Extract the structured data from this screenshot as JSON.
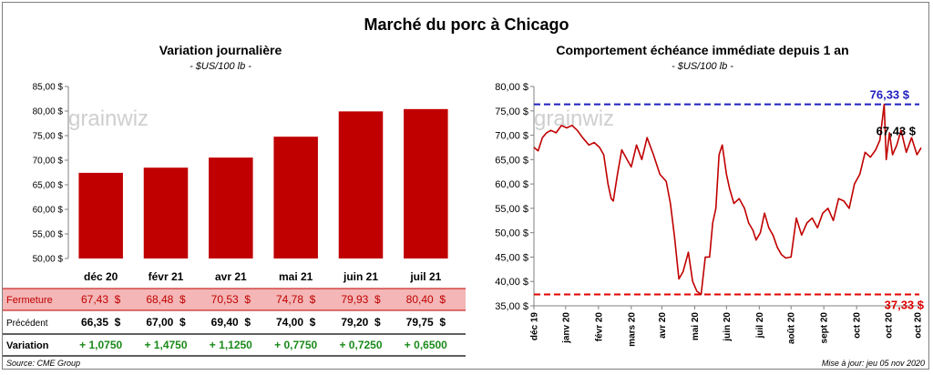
{
  "main_title": "Marché du porc à Chicago",
  "source": "Source: CME Group",
  "updated": "Mise à jour: jeu 05 nov 2020",
  "watermark": "grainwiz",
  "colors": {
    "bar": "#c00000",
    "line": "#c00000",
    "max_line": "#1f1fbf",
    "min_line": "#e00000",
    "positive": "#1a8a1a",
    "fermeture_bg": "#f4b6b6"
  },
  "chart_data": [
    {
      "type": "bar",
      "title": "Variation journalière",
      "subtitle": "- $US/100 lb -",
      "categories": [
        "déc 20",
        "févr 21",
        "avr 21",
        "mai 21",
        "juin 21",
        "juil 21"
      ],
      "values": [
        67.43,
        68.48,
        70.53,
        74.78,
        79.93,
        80.4
      ],
      "ylim": [
        50,
        85
      ],
      "yticks": [
        50,
        55,
        60,
        65,
        70,
        75,
        80,
        85
      ],
      "ytick_labels": [
        "50,00 $",
        "55,00 $",
        "60,00 $",
        "65,00 $",
        "70,00 $",
        "75,00 $",
        "80,00 $",
        "85,00 $"
      ],
      "grid": false,
      "table": {
        "rows": [
          {
            "label": "Fermeture",
            "values": [
              "67,43  $",
              "68,48  $",
              "70,53  $",
              "74,78  $",
              "79,93  $",
              "80,40  $"
            ]
          },
          {
            "label": "Précédent",
            "values": [
              "66,35  $",
              "67,00  $",
              "69,40  $",
              "74,00  $",
              "79,20  $",
              "79,75  $"
            ]
          },
          {
            "label": "Variation",
            "values": [
              "+ 1,0750",
              "+ 1,4750",
              "+ 1,1250",
              "+ 0,7750",
              "+ 0,7250",
              "+ 0,6500"
            ]
          }
        ]
      }
    },
    {
      "type": "line",
      "title": "Comportement  échéance immédiate depuis 1 an",
      "subtitle": "- $US/100 lb -",
      "ylim": [
        35,
        80
      ],
      "yticks": [
        35,
        40,
        45,
        50,
        55,
        60,
        65,
        70,
        75,
        80
      ],
      "ytick_labels": [
        "35,00 $",
        "40,00 $",
        "45,00 $",
        "50,00 $",
        "55,00 $",
        "60,00 $",
        "65,00 $",
        "70,00 $",
        "75,00 $",
        "80,00 $"
      ],
      "xtick_labels": [
        "déc 19",
        "janv 20",
        "févr 20",
        "mars 20",
        "avr 20",
        "mai 20",
        "juin 20",
        "juil 20",
        "août 20",
        "sept 20",
        "oct 20",
        "oct 20"
      ],
      "xticks": [
        "2019-11-05",
        "2019-12-05",
        "2020-01-05",
        "2020-02-05",
        "2020-03-05",
        "2020-04-05",
        "2020-05-05",
        "2020-06-05",
        "2020-07-05",
        "2020-08-05",
        "2020-09-05",
        "2020-10-05"
      ],
      "xlim": [
        "2019-11-05",
        "2020-11-05"
      ],
      "grid": false,
      "max_value": 76.33,
      "max_label": "76,33 $",
      "min_value": 37.33,
      "min_label": "37,33 $",
      "last_label": "67,43 $",
      "series": [
        {
          "x": [
            "2019-11-05",
            "2019-11-09",
            "2019-11-13",
            "2019-11-17",
            "2019-11-21",
            "2019-11-26",
            "2019-12-01",
            "2019-12-06",
            "2019-12-11",
            "2019-12-16",
            "2019-12-21",
            "2019-12-27",
            "2020-01-01",
            "2020-01-06",
            "2020-01-10",
            "2020-01-14",
            "2020-01-17",
            "2020-01-19",
            "2020-01-23",
            "2020-01-27",
            "2020-02-01",
            "2020-02-05",
            "2020-02-10",
            "2020-02-15",
            "2020-02-20",
            "2020-02-26",
            "2020-03-03",
            "2020-03-09",
            "2020-03-13",
            "2020-03-17",
            "2020-03-21",
            "2020-03-25",
            "2020-03-30",
            "2020-04-03",
            "2020-04-07",
            "2020-04-11",
            "2020-04-15",
            "2020-04-19",
            "2020-04-22",
            "2020-04-25",
            "2020-04-28",
            "2020-05-01",
            "2020-05-05",
            "2020-05-08",
            "2020-05-12",
            "2020-05-17",
            "2020-05-22",
            "2020-05-26",
            "2020-05-30",
            "2020-06-02",
            "2020-06-06",
            "2020-06-10",
            "2020-06-14",
            "2020-06-18",
            "2020-06-22",
            "2020-06-26",
            "2020-06-30",
            "2020-07-05",
            "2020-07-10",
            "2020-07-15",
            "2020-07-20",
            "2020-07-25",
            "2020-07-30",
            "2020-08-04",
            "2020-08-09",
            "2020-08-14",
            "2020-08-19",
            "2020-08-24",
            "2020-08-29",
            "2020-09-03",
            "2020-09-08",
            "2020-09-13",
            "2020-09-18",
            "2020-09-23",
            "2020-09-27",
            "2020-10-01",
            "2020-10-03",
            "2020-10-06",
            "2020-10-09",
            "2020-10-13",
            "2020-10-17",
            "2020-10-22",
            "2020-10-27",
            "2020-11-01",
            "2020-11-05"
          ],
          "y": [
            67.5,
            66.8,
            69.5,
            70.5,
            71.0,
            70.5,
            72.0,
            71.5,
            72.0,
            71.0,
            69.5,
            68.0,
            68.5,
            67.5,
            66.0,
            60.0,
            57.0,
            56.5,
            62.0,
            67.0,
            65.0,
            63.5,
            68.0,
            65.0,
            69.5,
            66.0,
            62.0,
            60.5,
            56.0,
            49.0,
            40.5,
            42.0,
            46.0,
            40.0,
            38.0,
            37.33,
            45.0,
            45.0,
            52.0,
            55.0,
            66.0,
            68.0,
            62.0,
            59.0,
            56.0,
            57.0,
            55.0,
            52.0,
            50.5,
            48.5,
            50.0,
            54.0,
            51.0,
            49.5,
            47.0,
            45.5,
            44.8,
            45.0,
            53.0,
            49.5,
            52.0,
            53.0,
            51.0,
            54.0,
            55.0,
            52.5,
            57.0,
            56.5,
            55.0,
            60.0,
            62.0,
            66.5,
            65.5,
            67.0,
            69.0,
            76.33,
            65.0,
            70.5,
            66.0,
            68.0,
            71.0,
            66.5,
            69.5,
            66.0,
            67.43
          ]
        }
      ]
    }
  ]
}
